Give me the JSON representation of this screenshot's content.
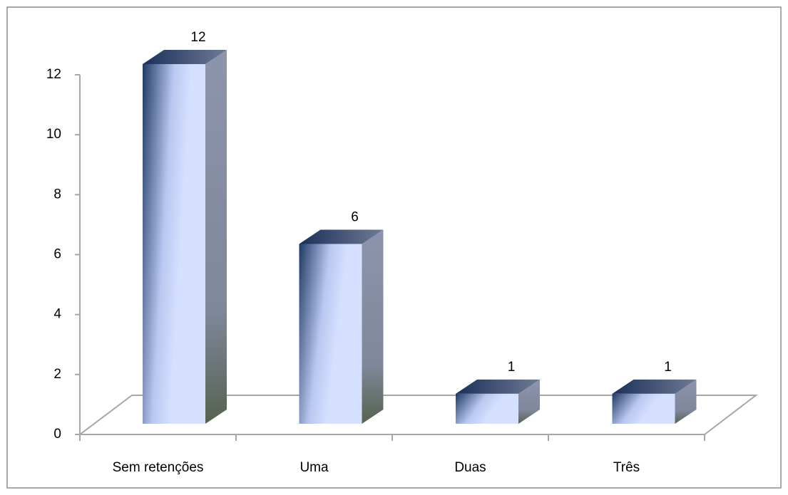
{
  "chart_data": {
    "type": "bar3d",
    "categories": [
      "Sem retenções",
      "Uma",
      "Duas",
      "Três"
    ],
    "values": [
      12,
      6,
      1,
      1
    ],
    "ylim": [
      0,
      12
    ],
    "yticks": [
      0,
      2,
      4,
      6,
      8,
      10,
      12
    ]
  }
}
